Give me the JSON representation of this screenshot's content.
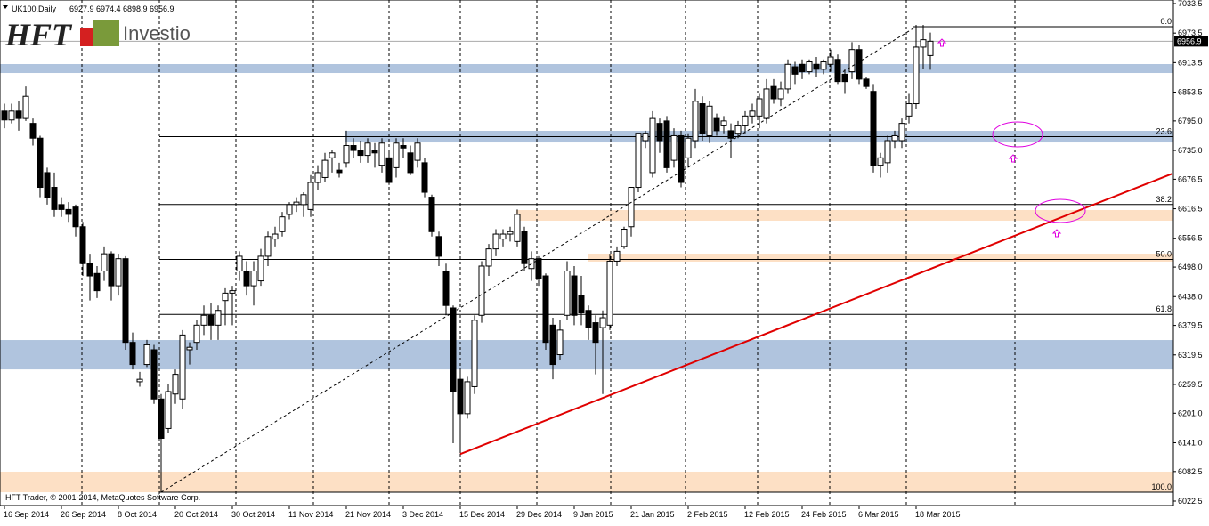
{
  "chart_data": {
    "type": "candlestick",
    "symbol": "UK100,Daily",
    "logo": {
      "brand": "HFT",
      "product": "Investio"
    },
    "copyright": "HFT Trader, © 2001-2014, MetaQuotes Software Corp.",
    "bull_color": "#ffffff",
    "bear_color": "#000000",
    "ylim": [
      6022.5,
      7033.5
    ],
    "yticks": [
      7033.5,
      6973.5,
      6913.5,
      6853.5,
      {
        "value": 6795,
        "label": "6795.0"
      },
      {
        "value": 6735,
        "label": "6735.0"
      },
      6676.5,
      6616.5,
      6556.5,
      {
        "value": 6498,
        "label": "6498.0"
      },
      {
        "value": 6438,
        "label": "6438.0"
      },
      6379.5,
      6319.5,
      6259.5,
      {
        "value": 6201,
        "label": "6201.0"
      },
      {
        "value": 6141,
        "label": "6141.0"
      },
      6082.5,
      6022.5
    ],
    "categories": [
      "16 Sep 2014",
      null,
      null,
      null,
      null,
      null,
      null,
      null,
      "26 Sep 2014",
      null,
      null,
      null,
      null,
      null,
      null,
      null,
      "8 Oct 2014",
      null,
      null,
      null,
      null,
      null,
      null,
      null,
      "20 Oct 2014",
      null,
      null,
      null,
      null,
      null,
      null,
      null,
      "30 Oct 2014",
      null,
      null,
      null,
      null,
      null,
      null,
      null,
      "11 Nov 2014",
      null,
      null,
      null,
      null,
      null,
      null,
      null,
      "21 Nov 2014",
      null,
      null,
      null,
      null,
      null,
      null,
      null,
      "3 Dec 2014",
      null,
      null,
      null,
      null,
      null,
      null,
      null,
      "15 Dec 2014",
      null,
      null,
      null,
      null,
      null,
      null,
      null,
      "29 Dec 2014",
      null,
      null,
      null,
      null,
      null,
      null,
      null,
      "9 Jan 2015",
      null,
      null,
      null,
      null,
      null,
      null,
      null,
      "21 Jan 2015",
      null,
      null,
      null,
      null,
      null,
      null,
      null,
      "2 Feb 2015",
      null,
      null,
      null,
      null,
      null,
      null,
      null,
      "12 Feb 2015",
      null,
      null,
      null,
      null,
      null,
      null,
      null,
      "24 Feb 2015",
      null,
      null,
      null,
      null,
      null,
      null,
      null,
      "6 Mar 2015",
      null,
      null,
      null,
      null,
      null,
      null,
      null,
      "18 Mar 2015",
      null,
      null
    ],
    "open": [
      6815,
      6797,
      6815,
      6800,
      6790,
      6760,
      6690,
      6660,
      6625,
      6615,
      6620,
      6580,
      6505,
      6485,
      6490,
      6525,
      6460,
      6515,
      6345,
      6265,
      6300,
      6330,
      6230,
      6170,
      6240,
      6230,
      6330,
      6345,
      6380,
      6400,
      6380,
      6430,
      6445,
      6490,
      6490,
      6460,
      6470,
      6520,
      6555,
      6570,
      6605,
      6625,
      6625,
      6615,
      6670,
      6680,
      6720,
      6695,
      6710,
      6745,
      6735,
      6725,
      6735,
      6705,
      6720,
      6700,
      6745,
      6730,
      6715,
      6710,
      6640,
      6560,
      6490,
      6415,
      6270,
      6200,
      6255,
      6400,
      6500,
      6535,
      6555,
      6565,
      6550,
      6570,
      6495,
      6515,
      6480,
      6380,
      6320,
      6400,
      6480,
      6440,
      6410,
      6385,
      6375,
      6380,
      6510,
      6540,
      6580,
      6660,
      6755,
      6690,
      6790,
      6795,
      6715,
      6765,
      6720,
      6755,
      6830,
      6765,
      6800,
      6785,
      6775,
      6770,
      6785,
      6805,
      6805,
      6800,
      6865,
      6840,
      6860,
      6905,
      6910,
      6895,
      6910,
      6900,
      6910,
      6920,
      6890,
      6895,
      6940,
      6880,
      6855,
      6705,
      6710,
      6755,
      6755,
      6805,
      6830,
      6945,
      6927.9
    ],
    "high": [
      6830,
      6830,
      6835,
      6865,
      6800,
      6765,
      6700,
      6690,
      6640,
      6630,
      6625,
      6590,
      6525,
      6500,
      6540,
      6530,
      6525,
      6520,
      6365,
      6285,
      6350,
      6340,
      6240,
      6260,
      6290,
      6370,
      6345,
      6390,
      6420,
      6425,
      6420,
      6455,
      6460,
      6530,
      6510,
      6510,
      6535,
      6570,
      6580,
      6610,
      6630,
      6640,
      6650,
      6685,
      6705,
      6730,
      6735,
      6710,
      6775,
      6760,
      6755,
      6760,
      6750,
      6760,
      6735,
      6760,
      6760,
      6745,
      6760,
      6720,
      6645,
      6570,
      6505,
      6420,
      6290,
      6275,
      6400,
      6510,
      6545,
      6575,
      6575,
      6580,
      6615,
      6580,
      6530,
      6520,
      6485,
      6395,
      6390,
      6510,
      6500,
      6480,
      6420,
      6400,
      6410,
      6525,
      6540,
      6580,
      6660,
      6770,
      6775,
      6815,
      6800,
      6805,
      6780,
      6775,
      6770,
      6860,
      6845,
      6835,
      6810,
      6805,
      6790,
      6795,
      6815,
      6830,
      6850,
      6880,
      6880,
      6875,
      6920,
      6915,
      6920,
      6920,
      6925,
      6920,
      6940,
      6930,
      6900,
      6955,
      6950,
      6885,
      6870,
      6730,
      6765,
      6775,
      6800,
      6850,
      6990,
      6990,
      6974.4
    ],
    "low": [
      6780,
      6790,
      6775,
      6795,
      6745,
      6640,
      6625,
      6600,
      6600,
      6590,
      6560,
      6480,
      6430,
      6435,
      6470,
      6430,
      6440,
      6330,
      6290,
      6255,
      6295,
      6220,
      6040,
      6160,
      6220,
      6210,
      6300,
      6330,
      6360,
      6350,
      6350,
      6380,
      6380,
      6470,
      6440,
      6420,
      6460,
      6500,
      6540,
      6560,
      6595,
      6610,
      6600,
      6600,
      6655,
      6670,
      6690,
      6680,
      6700,
      6720,
      6710,
      6710,
      6700,
      6690,
      6665,
      6680,
      6720,
      6685,
      6700,
      6640,
      6560,
      6500,
      6400,
      6140,
      6120,
      6190,
      6240,
      6385,
      6480,
      6520,
      6540,
      6550,
      6540,
      6490,
      6470,
      6460,
      6330,
      6270,
      6310,
      6390,
      6380,
      6380,
      6350,
      6280,
      6240,
      6370,
      6500,
      6535,
      6560,
      6650,
      6740,
      6680,
      6730,
      6690,
      6700,
      6660,
      6700,
      6740,
      6755,
      6750,
      6765,
      6770,
      6720,
      6760,
      6770,
      6790,
      6780,
      6790,
      6830,
      6825,
      6850,
      6870,
      6880,
      6890,
      6885,
      6890,
      6895,
      6870,
      6850,
      6880,
      6870,
      6860,
      6690,
      6680,
      6690,
      6740,
      6740,
      6790,
      6820,
      6900,
      6898.9
    ],
    "close": [
      6797,
      6815,
      6800,
      6845,
      6760,
      6660,
      6640,
      6615,
      6615,
      6605,
      6580,
      6505,
      6480,
      6450,
      6525,
      6460,
      6515,
      6345,
      6300,
      6270,
      6340,
      6230,
      6150,
      6245,
      6280,
      6360,
      6335,
      6380,
      6400,
      6380,
      6410,
      6445,
      6450,
      6520,
      6460,
      6490,
      6520,
      6560,
      6565,
      6600,
      6625,
      6630,
      6645,
      6670,
      6690,
      6715,
      6730,
      6690,
      6745,
      6735,
      6725,
      6750,
      6730,
      6750,
      6670,
      6750,
      6740,
      6690,
      6750,
      6650,
      6570,
      6520,
      6420,
      6245,
      6200,
      6265,
      6390,
      6500,
      6535,
      6565,
      6565,
      6570,
      6605,
      6505,
      6515,
      6475,
      6345,
      6300,
      6370,
      6490,
      6400,
      6405,
      6375,
      6345,
      6395,
      6510,
      6530,
      6575,
      6660,
      6770,
      6770,
      6800,
      6755,
      6700,
      6765,
      6670,
      6760,
      6835,
      6770,
      6825,
      6775,
      6795,
      6760,
      6785,
      6805,
      6815,
      6840,
      6860,
      6840,
      6860,
      6910,
      6890,
      6895,
      6915,
      6900,
      6915,
      6925,
      6875,
      6875,
      6940,
      6880,
      6865,
      6705,
      6720,
      6755,
      6765,
      6790,
      6830,
      6945,
      6960,
      6956.9
    ],
    "fib_levels": [
      {
        "label": "0.0",
        "price": 6986.5
      },
      {
        "label": "23.6",
        "price": 6763.2
      },
      {
        "label": "38.2",
        "price": 6625.1
      },
      {
        "label": "50.0",
        "price": 6513.5
      },
      {
        "label": "61.8",
        "price": 6401.9
      },
      {
        "label": "100.0",
        "price": 6040.5
      }
    ],
    "zones": [
      {
        "low": 6892.4,
        "high": 6910.5,
        "color": "#b0c4de"
      },
      {
        "low": 6751.3,
        "high": 6774.9,
        "color": "#b0c4de"
      },
      {
        "low": 6592.2,
        "high": 6613.9,
        "color": "#fde0c5"
      },
      {
        "low": 6509,
        "high": 6525.3,
        "color": "#fde0c5"
      },
      {
        "low": 6290,
        "high": 6349.8,
        "color": "#b0c4de"
      },
      {
        "low": 6040.5,
        "high": 6082.2,
        "color": "#fde0c5"
      }
    ],
    "trendlines": [
      {
        "start_index": 64,
        "start_price": 6118,
        "end_index": 164,
        "end_price": 6688,
        "color": "#e00000"
      },
      {
        "start_index": 22,
        "start_price": 6040.5,
        "end_index": 128,
        "end_price": 6986.5,
        "color": "#000000"
      }
    ]
  }
}
